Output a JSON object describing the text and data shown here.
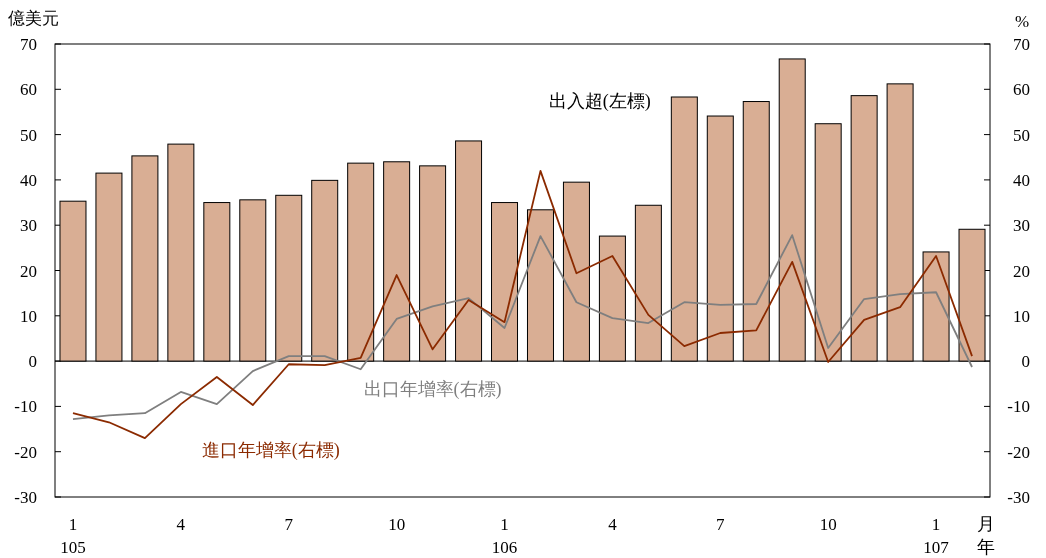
{
  "chart_data": {
    "type": "bar",
    "ylabel": "億美元",
    "y2label": "%",
    "xlabel": "月年",
    "categories": [
      "1\n105",
      null,
      null,
      "4",
      null,
      null,
      "7",
      null,
      null,
      "10",
      null,
      null,
      "1\n106",
      null,
      null,
      "4",
      null,
      null,
      "7",
      null,
      null,
      "10",
      null,
      null,
      "1\n107",
      null
    ],
    "series": [
      {
        "name": "出入超(左標)",
        "color": "#d9ae94",
        "values": [
          35.3,
          41.5,
          45.3,
          47.9,
          35,
          35.6,
          36.6,
          39.9,
          43.7,
          44,
          43.1,
          48.6,
          35,
          33.4,
          39.5,
          27.6,
          34.4,
          58.3,
          54.1,
          57.3,
          66.7,
          52.4,
          58.6,
          61.2,
          24.1,
          29.1
        ]
      },
      {
        "name": "出口年增率(右標)",
        "type": "line",
        "axis": "y2",
        "color": "#7f7f7f",
        "values": [
          -12.8,
          -12,
          -11.5,
          -6.8,
          -9.5,
          -2.2,
          1.1,
          1.1,
          -1.8,
          9.3,
          12.1,
          13.9,
          7.3,
          27.6,
          13,
          9.5,
          8.4,
          13,
          12.4,
          12.6,
          27.8,
          2.9,
          13.7,
          14.8,
          15.2,
          -1.3
        ]
      },
      {
        "name": "進口年增率(右標)",
        "type": "line",
        "axis": "y2",
        "color": "#8b2a00",
        "values": [
          -11.5,
          -13.5,
          -17,
          -9.5,
          -3.5,
          -9.7,
          -0.7,
          -0.9,
          0.7,
          19,
          2.6,
          13.5,
          8.6,
          42,
          19.4,
          23.2,
          10.2,
          3.3,
          6.2,
          6.8,
          21.9,
          -0.2,
          9.1,
          11.9,
          23.2,
          1.1
        ]
      }
    ],
    "ylim": [
      -30,
      70
    ],
    "yticks": [
      -30,
      -20,
      -10,
      0,
      10,
      20,
      30,
      40,
      50,
      60,
      70
    ],
    "y2lim": [
      -30,
      70
    ],
    "y2ticks": [
      -30,
      -20,
      -10,
      0,
      10,
      20,
      30,
      40,
      50,
      60,
      70
    ],
    "legend": false
  }
}
